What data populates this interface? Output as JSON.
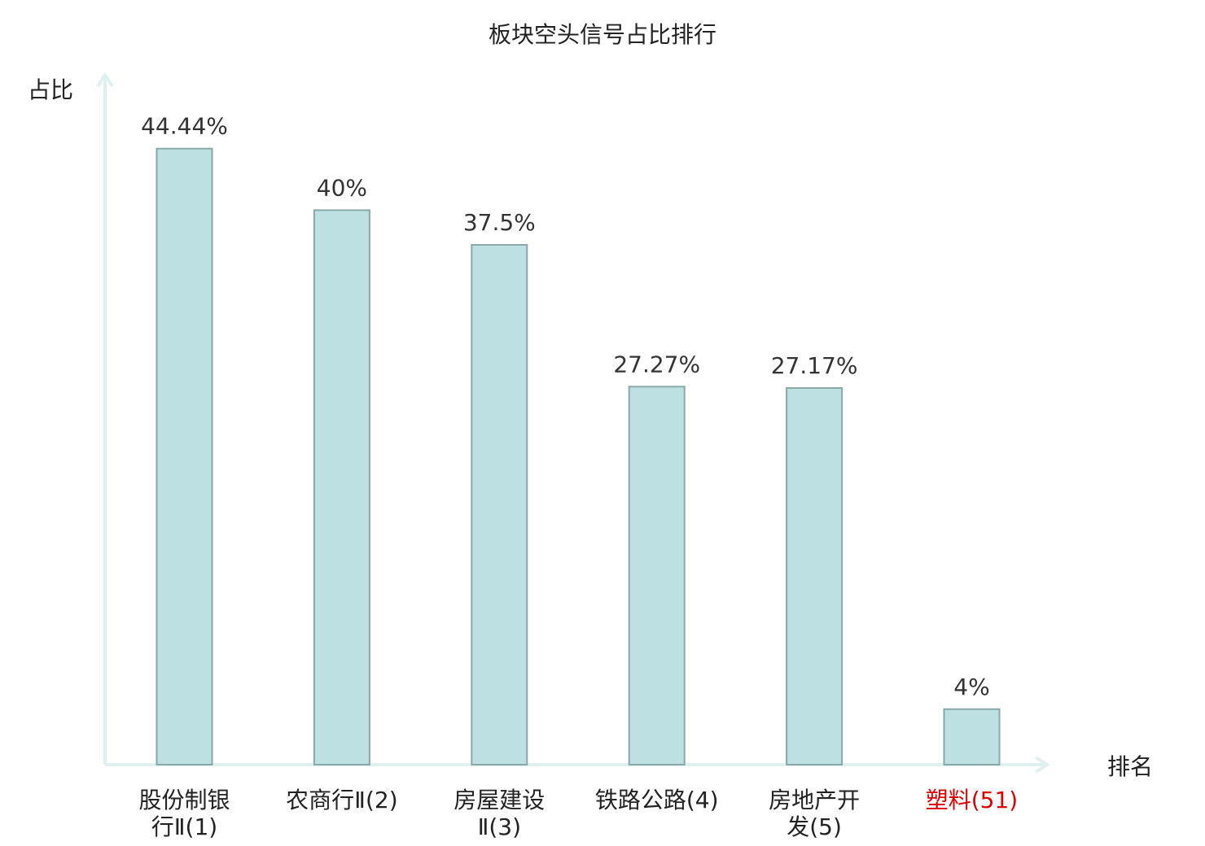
{
  "chart_data": {
    "type": "bar",
    "title": "板块空头信号占比排行",
    "xlabel": "排名",
    "ylabel": "占比",
    "categories": [
      [
        "股份制银",
        "行Ⅱ(1)"
      ],
      [
        "农商行Ⅱ(2)"
      ],
      [
        "房屋建设",
        "Ⅱ(3)"
      ],
      [
        "铁路公路(4)"
      ],
      [
        "房地产开",
        "发(5)"
      ],
      [
        "塑料(51)"
      ]
    ],
    "values": [
      44.44,
      40,
      37.5,
      27.27,
      27.17,
      4
    ],
    "value_labels": [
      "44.44%",
      "40%",
      "37.5%",
      "27.27%",
      "27.17%",
      "4%"
    ],
    "highlight_index": 5,
    "ylim": [
      0,
      50
    ],
    "grid": false,
    "colors": {
      "bar_fill": "#bde0e2",
      "bar_stroke": "#8aa8aa",
      "axis": "#dff1ef",
      "highlight_label": "#e00000",
      "text": "#222222"
    }
  }
}
